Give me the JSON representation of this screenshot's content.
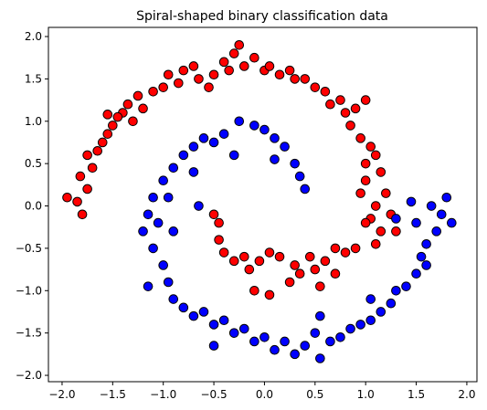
{
  "chart_data": {
    "type": "scatter",
    "title": "Spiral-shaped binary classification data",
    "xlim": [
      -2.135,
      2.1
    ],
    "ylim": [
      -2.075,
      2.108
    ],
    "xticks": [
      {
        "value": -2.0,
        "label": "−2.0"
      },
      {
        "value": -1.5,
        "label": "−1.5"
      },
      {
        "value": -1.0,
        "label": "−1.0"
      },
      {
        "value": -0.5,
        "label": "−0.5"
      },
      {
        "value": 0.0,
        "label": "0.0"
      },
      {
        "value": 0.5,
        "label": "0.5"
      },
      {
        "value": 1.0,
        "label": "1.0"
      },
      {
        "value": 1.5,
        "label": "1.5"
      },
      {
        "value": 2.0,
        "label": "2.0"
      }
    ],
    "yticks": [
      {
        "value": -2.0,
        "label": "−2.0"
      },
      {
        "value": -1.5,
        "label": "−1.5"
      },
      {
        "value": -1.0,
        "label": "−1.0"
      },
      {
        "value": -0.5,
        "label": "−0.5"
      },
      {
        "value": 0.0,
        "label": "0.0"
      },
      {
        "value": 0.5,
        "label": "0.5"
      },
      {
        "value": 1.0,
        "label": "1.0"
      },
      {
        "value": 1.5,
        "label": "1.5"
      },
      {
        "value": 2.0,
        "label": "2.0"
      }
    ],
    "series": [
      {
        "color": "#ff0000",
        "x": [
          -1.95,
          -1.85,
          -1.8,
          -1.75,
          -1.82,
          -1.7,
          -1.75,
          -1.65,
          -1.6,
          -1.55,
          -1.5,
          -1.55,
          -1.4,
          -1.35,
          -1.45,
          -1.3,
          -1.25,
          -1.2,
          -1.1,
          -1.0,
          -0.95,
          -0.85,
          -0.8,
          -0.7,
          -0.65,
          -0.55,
          -0.5,
          -0.4,
          -0.35,
          -0.3,
          -0.25,
          -0.2,
          -0.1,
          0.0,
          0.05,
          0.15,
          0.25,
          0.3,
          0.4,
          0.5,
          0.6,
          0.65,
          0.75,
          0.8,
          0.85,
          0.9,
          1.0,
          0.95,
          1.05,
          1.1,
          1.0,
          1.15,
          1.0,
          1.2,
          0.95,
          1.1,
          1.05,
          1.25,
          1.0,
          1.15,
          1.3,
          1.1,
          0.9,
          0.8,
          0.7,
          0.6,
          0.5,
          0.45,
          0.35,
          0.3,
          0.25,
          0.15,
          0.05,
          -0.05,
          -0.15,
          -0.2,
          -0.3,
          -0.4,
          -0.45,
          -0.45,
          -0.5,
          -0.1,
          0.05,
          0.55,
          0.7
        ],
        "y": [
          0.1,
          0.05,
          -0.1,
          0.2,
          0.35,
          0.45,
          0.6,
          0.65,
          0.75,
          0.85,
          0.95,
          1.08,
          1.1,
          1.2,
          1.05,
          1.0,
          1.3,
          1.15,
          1.35,
          1.4,
          1.55,
          1.45,
          1.6,
          1.65,
          1.5,
          1.4,
          1.55,
          1.7,
          1.6,
          1.8,
          1.9,
          1.65,
          1.75,
          1.6,
          1.65,
          1.55,
          1.6,
          1.5,
          1.5,
          1.4,
          1.35,
          1.2,
          1.25,
          1.1,
          0.95,
          1.15,
          1.25,
          0.8,
          0.7,
          0.6,
          0.5,
          0.4,
          0.3,
          0.15,
          0.15,
          0.0,
          -0.15,
          -0.1,
          -0.2,
          -0.3,
          -0.3,
          -0.45,
          -0.5,
          -0.55,
          -0.5,
          -0.65,
          -0.75,
          -0.6,
          -0.8,
          -0.7,
          -0.9,
          -0.6,
          -0.55,
          -0.65,
          -0.75,
          -0.6,
          -0.65,
          -0.55,
          -0.4,
          -0.2,
          -0.1,
          -1.0,
          -1.05,
          -0.95,
          -0.8
        ]
      },
      {
        "color": "#0000ff",
        "x": [
          0.4,
          0.35,
          0.3,
          0.2,
          0.1,
          0.0,
          -0.1,
          -0.25,
          -0.4,
          -0.5,
          -0.6,
          -0.7,
          -0.8,
          -0.9,
          -1.0,
          -1.1,
          -1.15,
          -1.2,
          -1.05,
          -1.1,
          -1.0,
          -0.95,
          -1.15,
          -0.9,
          -0.8,
          -0.7,
          -0.6,
          -0.5,
          -0.4,
          -0.3,
          -0.2,
          -0.1,
          0.0,
          0.1,
          0.2,
          0.3,
          0.4,
          0.5,
          0.55,
          0.65,
          0.75,
          0.85,
          0.95,
          1.05,
          1.15,
          1.25,
          1.3,
          1.4,
          1.5,
          1.55,
          1.6,
          1.7,
          1.75,
          1.85,
          1.8,
          1.65,
          1.5,
          1.45,
          1.3,
          1.6,
          -0.65,
          -0.9,
          -0.95,
          -0.7,
          -0.3,
          0.55,
          1.05,
          -0.5,
          0.1
        ],
        "y": [
          0.2,
          0.35,
          0.5,
          0.7,
          0.8,
          0.9,
          0.95,
          1.0,
          0.85,
          0.75,
          0.8,
          0.7,
          0.6,
          0.45,
          0.3,
          0.1,
          -0.1,
          -0.3,
          -0.2,
          -0.5,
          -0.7,
          -0.9,
          -0.95,
          -1.1,
          -1.2,
          -1.3,
          -1.25,
          -1.4,
          -1.35,
          -1.5,
          -1.45,
          -1.6,
          -1.55,
          -1.7,
          -1.6,
          -1.75,
          -1.65,
          -1.5,
          -1.8,
          -1.6,
          -1.55,
          -1.45,
          -1.4,
          -1.35,
          -1.25,
          -1.15,
          -1.0,
          -0.95,
          -0.8,
          -0.6,
          -0.45,
          -0.3,
          -0.1,
          -0.2,
          0.1,
          0.0,
          -0.2,
          0.05,
          -0.15,
          -0.7,
          0.0,
          -0.3,
          0.1,
          0.4,
          0.6,
          -1.3,
          -1.1,
          -1.65,
          0.55
        ]
      }
    ]
  }
}
